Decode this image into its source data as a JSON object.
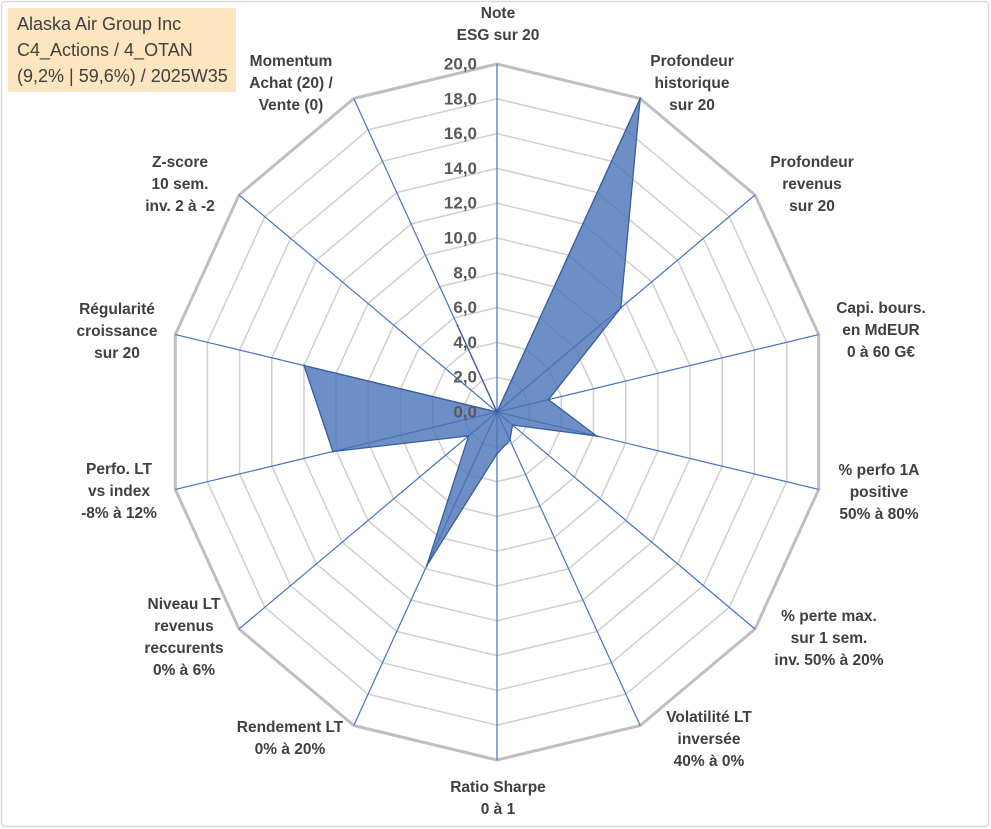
{
  "chart_data": {
    "type": "radar",
    "title": "Alaska Air Group Inc",
    "subtitle_lines": [
      "C4_Actions / 4_OTAN",
      "(9,2% | 59,6%) / 2025W35"
    ],
    "categories": [
      [
        "Note",
        "ESG sur 20"
      ],
      [
        "Profondeur",
        "historique",
        "sur 20"
      ],
      [
        "Profondeur",
        "revenus",
        "sur 20"
      ],
      [
        "Capi. bours.",
        "en MdEUR",
        "0 à 60 G€"
      ],
      [
        "% perfo 1A",
        "positive",
        "50% à 80%"
      ],
      [
        "% perte max.",
        "sur 1 sem.",
        "inv. 50% à 20%"
      ],
      [
        "Volatilité LT",
        "inversée",
        "40% à 0%"
      ],
      [
        "Ratio Sharpe",
        "0 à 1"
      ],
      [
        "Rendement LT",
        "0% à 20%"
      ],
      [
        "Niveau LT",
        "revenus",
        "reccurents",
        "0% à 6%"
      ],
      [
        "Perfo. LT",
        "vs index",
        "-8% à 12%"
      ],
      [
        "Régularité",
        "croissance",
        "sur 20"
      ],
      [
        "Z-score",
        "10 sem.",
        "inv. 2 à -2"
      ],
      [
        "Momentum",
        "Achat (20) /",
        "Vente (0)"
      ]
    ],
    "series": [
      {
        "values": [
          0,
          20,
          9.6,
          3.2,
          6.2,
          1.2,
          1.8,
          2.4,
          9.8,
          2.2,
          10.2,
          12.0,
          0,
          5.5
        ]
      }
    ],
    "rlim": [
      0,
      20
    ],
    "ticks": [
      0,
      2,
      4,
      6,
      8,
      10,
      12,
      14,
      16,
      18,
      20
    ],
    "tick_labels": [
      "0,0",
      "2,0",
      "4,0",
      "6,0",
      "8,0",
      "10,0",
      "12,0",
      "14,0",
      "16,0",
      "18,0",
      "20,0"
    ],
    "grid": true,
    "legend": "none"
  },
  "colors": {
    "series_fill": "#4A72B8",
    "series_line": "#3B5E9C",
    "axis_line": "#4472C4",
    "grid": "#CFCFCF",
    "grid_outer": "#BFBFBF",
    "info_box_bg": "#FCE5BF"
  }
}
